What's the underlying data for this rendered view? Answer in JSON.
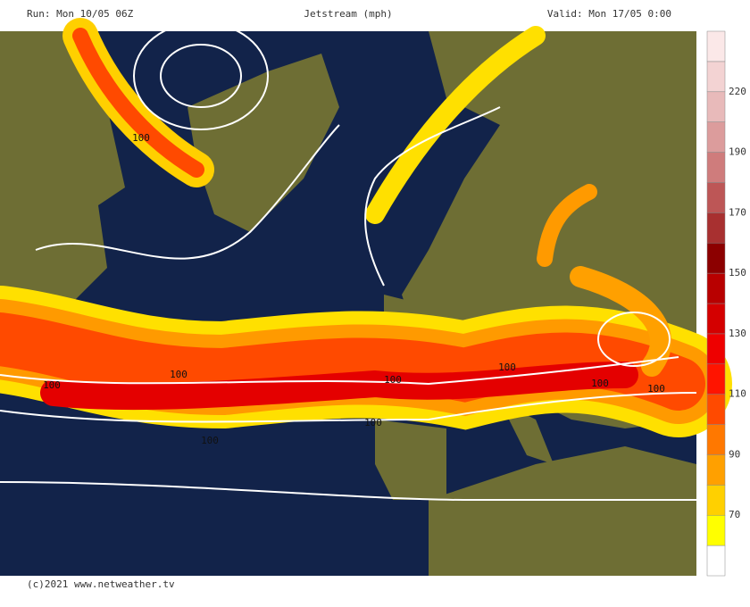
{
  "header": {
    "run": "Run: Mon 10/05 06Z",
    "title": "Jetstream (mph)",
    "valid": "Valid: Mon 17/05 0:00"
  },
  "footer": "(c)2021 www.netweather.tv",
  "colorbar": {
    "colors": [
      "#ffffff",
      "#ffff00",
      "#ffd000",
      "#ffa000",
      "#ff7800",
      "#ff4a00",
      "#ff1400",
      "#ee0000",
      "#d40000",
      "#b80000",
      "#8c0000",
      "#a83030",
      "#bd5656",
      "#cf7c7c",
      "#dc9c9c",
      "#e8baba",
      "#f3d3d3",
      "#fbe8e8"
    ],
    "ticks": [
      70,
      90,
      110,
      130,
      150,
      170,
      190,
      220
    ]
  },
  "contour_labels": [
    100,
    100,
    100,
    100,
    100,
    100,
    100,
    100,
    100
  ]
}
